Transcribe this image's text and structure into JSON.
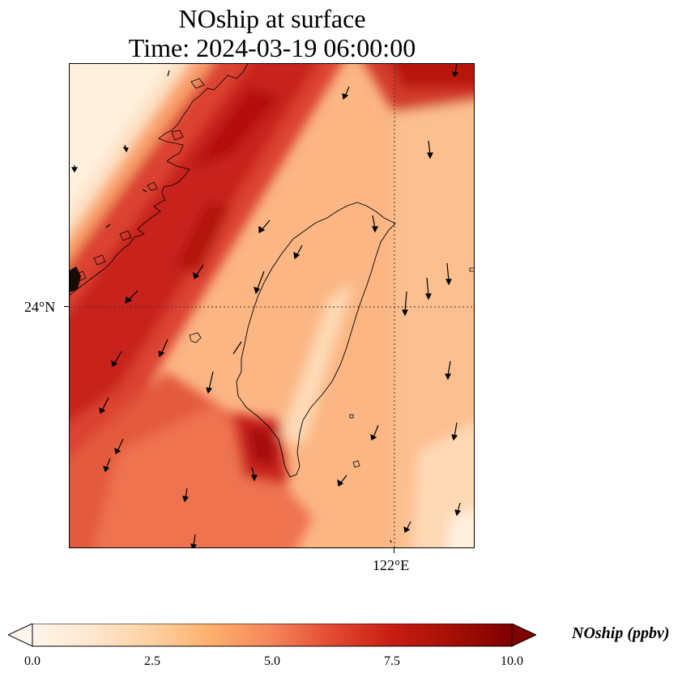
{
  "title": {
    "line1": "NOship at surface",
    "line2": "Time: 2024-03-19 06:00:00"
  },
  "axes": {
    "lat_tick": "24°N",
    "lon_tick": "122°E"
  },
  "colorbar": {
    "label": "NOship (ppbv)",
    "ticks": [
      "0.0",
      "2.5",
      "5.0",
      "7.5",
      "10.0"
    ],
    "min": 0,
    "max": 10,
    "extend": "both",
    "colormap": [
      "#fff5eb",
      "#fee6ce",
      "#fdd0a2",
      "#fdae6b",
      "#f4845a",
      "#e34a33",
      "#c81d13",
      "#a50f05",
      "#7f0000"
    ]
  },
  "map_data": {
    "type": "heatmap",
    "features": [
      "coastline",
      "wind-vectors",
      "gridlines"
    ],
    "gridlines": "dotted",
    "colors": {
      "low": "#fff5eb",
      "high": "#7f0000"
    }
  }
}
